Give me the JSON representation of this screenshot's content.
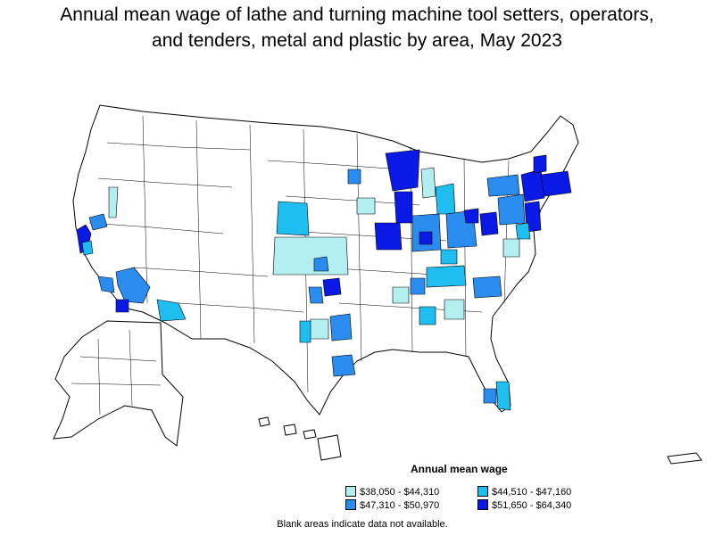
{
  "title_line1": "Annual mean wage of lathe and turning machine tool setters, operators,",
  "title_line2": "and tenders, metal and plastic by area, May 2023",
  "legend": {
    "title": "Annual mean wage",
    "items": [
      {
        "label": "$38,050 - $44,310",
        "color": "#b3eef0"
      },
      {
        "label": "$44,510 - $47,160",
        "color": "#1ebff0"
      },
      {
        "label": "$47,310 - $50,970",
        "color": "#2b8cf0"
      },
      {
        "label": "$51,650 - $64,340",
        "color": "#0a1ae6"
      }
    ]
  },
  "note": "Blank areas indicate data not available."
}
